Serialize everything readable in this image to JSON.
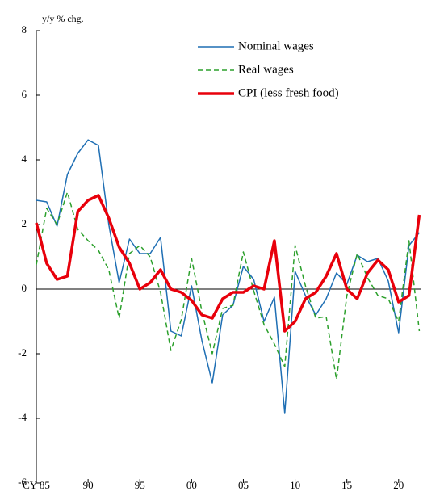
{
  "chart_data": {
    "type": "line",
    "ylabel": "y/y % chg.",
    "x": [
      1985,
      1986,
      1987,
      1988,
      1989,
      1990,
      1991,
      1992,
      1993,
      1994,
      1995,
      1996,
      1997,
      1998,
      1999,
      2000,
      2001,
      2002,
      2003,
      2004,
      2005,
      2006,
      2007,
      2008,
      2009,
      2010,
      2011,
      2012,
      2013,
      2014,
      2015,
      2016,
      2017,
      2018,
      2019,
      2020,
      2021,
      2022
    ],
    "series": [
      {
        "name": "Nominal wages",
        "color": "#1f6fb4",
        "dash": "solid",
        "width": 1.5,
        "values": [
          2.75,
          2.7,
          1.95,
          3.55,
          4.2,
          4.62,
          4.45,
          2.0,
          0.2,
          1.55,
          1.1,
          1.1,
          1.6,
          -1.3,
          -1.45,
          0.1,
          -1.6,
          -2.9,
          -0.8,
          -0.5,
          0.7,
          0.3,
          -1.0,
          -0.25,
          -3.85,
          0.55,
          -0.2,
          -0.8,
          -0.3,
          0.5,
          0.15,
          1.05,
          0.85,
          0.95,
          0.25,
          -1.35,
          1.35,
          1.75
        ]
      },
      {
        "name": "Real wages",
        "color": "#2ca02c",
        "dash": "dashed",
        "width": 1.5,
        "values": [
          0.75,
          2.5,
          2.0,
          3.0,
          1.85,
          1.5,
          1.2,
          0.6,
          -0.9,
          1.1,
          1.35,
          1.0,
          -0.1,
          -1.9,
          -0.95,
          0.95,
          -0.7,
          -2.0,
          -0.6,
          -0.5,
          1.15,
          -0.05,
          -1.1,
          -1.7,
          -2.4,
          1.35,
          0.1,
          -0.9,
          -0.85,
          -2.8,
          -0.2,
          1.1,
          0.35,
          -0.2,
          -0.3,
          -1.0,
          1.5,
          -1.3
        ]
      },
      {
        "name": "CPI (less fresh food)",
        "color": "#e8000b",
        "dash": "solid",
        "width": 3.5,
        "values": [
          2.05,
          0.8,
          0.3,
          0.4,
          2.4,
          2.75,
          2.9,
          2.2,
          1.3,
          0.8,
          0.0,
          0.2,
          0.6,
          0.0,
          -0.1,
          -0.35,
          -0.8,
          -0.9,
          -0.3,
          -0.1,
          -0.1,
          0.1,
          0.0,
          1.5,
          -1.3,
          -1.0,
          -0.3,
          -0.1,
          0.4,
          1.1,
          0.0,
          -0.3,
          0.5,
          0.9,
          0.6,
          -0.4,
          -0.2,
          2.3
        ]
      }
    ],
    "xlim": [
      1985,
      2022.2
    ],
    "xticks": [
      {
        "value": 1985,
        "label": "CY 85"
      },
      {
        "value": 1990,
        "label": "90"
      },
      {
        "value": 1995,
        "label": "95"
      },
      {
        "value": 2000,
        "label": "00"
      },
      {
        "value": 2005,
        "label": "05"
      },
      {
        "value": 2010,
        "label": "10"
      },
      {
        "value": 2015,
        "label": "15"
      },
      {
        "value": 2020,
        "label": "20"
      }
    ],
    "ylim": [
      -6,
      8
    ],
    "yticks": [
      -6,
      -4,
      -2,
      0,
      2,
      4,
      6,
      8
    ],
    "zero_line": true,
    "legend": "top-right"
  }
}
